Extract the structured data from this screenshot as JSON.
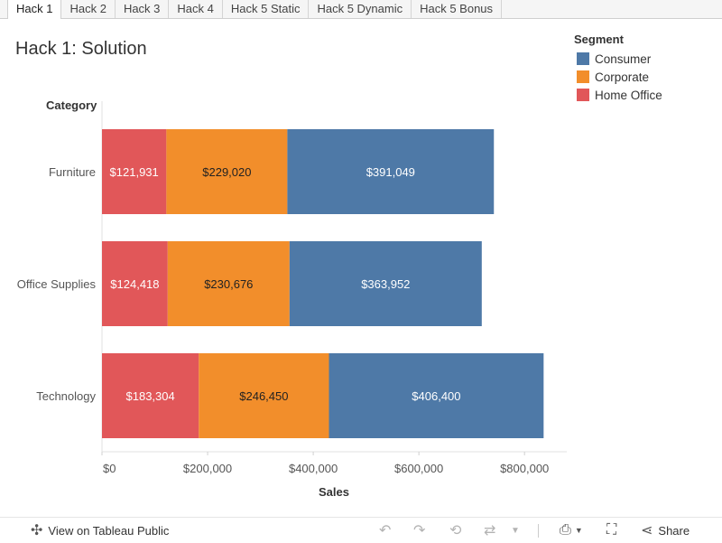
{
  "tabs": [
    "Hack 1",
    "Hack 2",
    "Hack 3",
    "Hack 4",
    "Hack 5 Static",
    "Hack 5 Dynamic",
    "Hack 5 Bonus"
  ],
  "active_tab": 0,
  "title": "Hack 1: Solution",
  "legend": {
    "title": "Segment",
    "items": [
      {
        "label": "Consumer",
        "color": "#4e79a7"
      },
      {
        "label": "Corporate",
        "color": "#f28e2b"
      },
      {
        "label": "Home Office",
        "color": "#e15759"
      }
    ]
  },
  "chart_data": {
    "type": "bar",
    "orientation": "horizontal",
    "stacked": true,
    "categories": [
      "Furniture",
      "Office Supplies",
      "Technology"
    ],
    "series": [
      {
        "name": "Home Office",
        "color": "#e15759",
        "values": [
          121931,
          124418,
          183304
        ],
        "labels": [
          "$121,931",
          "$124,418",
          "$183,304"
        ]
      },
      {
        "name": "Corporate",
        "color": "#f28e2b",
        "values": [
          229020,
          230676,
          246450
        ],
        "labels": [
          "$229,020",
          "$230,676",
          "$246,450"
        ]
      },
      {
        "name": "Consumer",
        "color": "#4e79a7",
        "values": [
          391049,
          363952,
          406400
        ],
        "labels": [
          "$391,049",
          "$363,952",
          "$406,400"
        ]
      }
    ],
    "ylabel": "Category",
    "xlabel": "Sales",
    "xlim": [
      0,
      880000
    ],
    "xticks": [
      0,
      200000,
      400000,
      600000,
      800000
    ],
    "xtick_labels": [
      "$0",
      "$200,000",
      "$400,000",
      "$600,000",
      "$800,000"
    ],
    "grid": false,
    "legend_position": "top-right"
  },
  "footer": {
    "view_label": "View on Tableau Public",
    "share_label": "Share"
  }
}
